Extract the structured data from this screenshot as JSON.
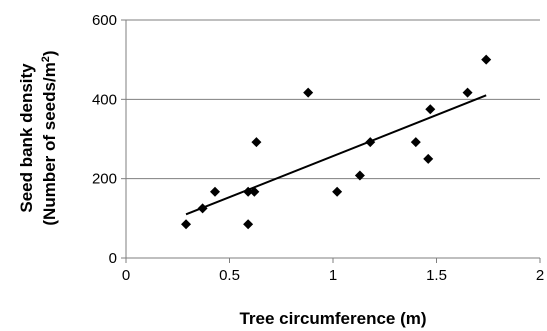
{
  "chart_data": {
    "type": "scatter",
    "title": "",
    "xlabel": "Tree circumference (m)",
    "ylabel_line1": "Seed bank density",
    "ylabel_line2_prefix": "(Number of seeds/m",
    "ylabel_line2_sup": "2",
    "ylabel_line2_suffix": ")",
    "xlim": [
      0,
      2
    ],
    "ylim": [
      0,
      600
    ],
    "x_ticks": [
      0,
      0.5,
      1,
      1.5,
      2
    ],
    "y_ticks": [
      0,
      200,
      400,
      600
    ],
    "horizontal_grid": true,
    "vertical_grid": false,
    "legend": "none",
    "marker": "diamond",
    "marker_color": "#000000",
    "points": [
      {
        "x": 0.29,
        "y": 85
      },
      {
        "x": 0.37,
        "y": 125
      },
      {
        "x": 0.43,
        "y": 167
      },
      {
        "x": 0.59,
        "y": 85
      },
      {
        "x": 0.59,
        "y": 167
      },
      {
        "x": 0.62,
        "y": 167
      },
      {
        "x": 0.63,
        "y": 292
      },
      {
        "x": 0.88,
        "y": 417
      },
      {
        "x": 1.02,
        "y": 167
      },
      {
        "x": 1.13,
        "y": 208
      },
      {
        "x": 1.18,
        "y": 292
      },
      {
        "x": 1.4,
        "y": 292
      },
      {
        "x": 1.46,
        "y": 250
      },
      {
        "x": 1.47,
        "y": 375
      },
      {
        "x": 1.65,
        "y": 417
      },
      {
        "x": 1.74,
        "y": 500
      }
    ],
    "trendline": {
      "type": "linear",
      "from": {
        "x": 0.29,
        "y": 110
      },
      "to": {
        "x": 1.74,
        "y": 410
      }
    }
  }
}
